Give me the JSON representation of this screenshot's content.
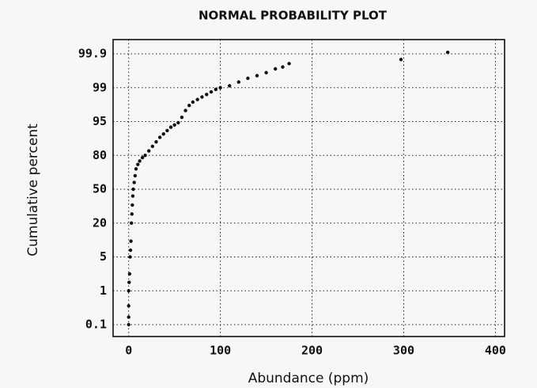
{
  "chart_data": {
    "type": "scatter",
    "title": "NORMAL PROBABILITY PLOT",
    "x_label": "Abundance (ppm)",
    "y_label": "Cumulative percent",
    "xlim": [
      -17,
      410
    ],
    "xticks": [
      0,
      100,
      200,
      300,
      400
    ],
    "ylim": [
      0.1,
      99.9
    ],
    "yticks": [
      0.1,
      1,
      5,
      20,
      50,
      80,
      95,
      99,
      99.9
    ],
    "grid": true,
    "color": "#111111",
    "x": [
      0,
      0,
      0,
      0,
      0.5,
      1,
      1.5,
      2,
      2.5,
      3,
      3.5,
      4,
      4.5,
      5,
      6,
      7,
      8,
      10,
      12,
      15,
      18,
      22,
      26,
      30,
      34,
      38,
      42,
      46,
      50,
      54,
      58,
      62,
      66,
      70,
      75,
      80,
      85,
      90,
      95,
      100,
      110,
      120,
      130,
      140,
      150,
      160,
      168,
      175,
      297,
      348
    ],
    "values": [
      0.1,
      0.3,
      0.6,
      1,
      2,
      3,
      5,
      8,
      12,
      20,
      28,
      36,
      44,
      50,
      56,
      62,
      68,
      72,
      75,
      78,
      80,
      82,
      84,
      86,
      88,
      89.5,
      91,
      92.5,
      93.5,
      94.5,
      95.5,
      96.3,
      96.9,
      97.3,
      97.6,
      97.9,
      98.2,
      98.5,
      98.8,
      99,
      99.05,
      99.15,
      99.25,
      99.32,
      99.4,
      99.5,
      99.55,
      99.64,
      99.75,
      99.94
    ]
  }
}
